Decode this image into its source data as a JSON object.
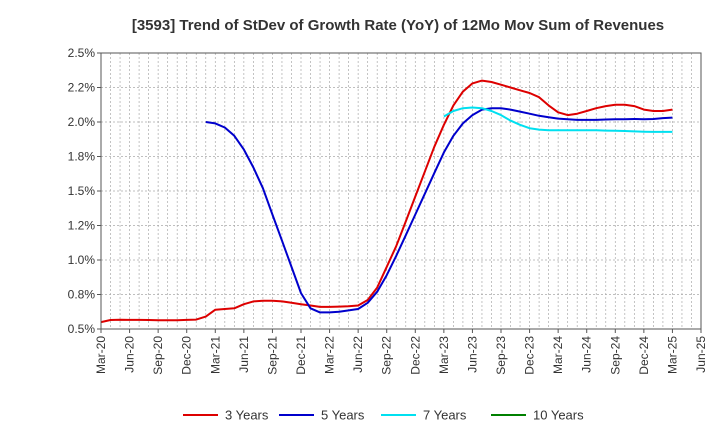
{
  "chart_data": {
    "type": "line",
    "title": "[3593]  Trend of StDev of Growth Rate (YoY) of 12Mo Mov Sum of Revenues",
    "xlabel": "",
    "ylabel": "",
    "x_ticks": [
      "Mar-20",
      "Jun-20",
      "Sep-20",
      "Dec-20",
      "Mar-21",
      "Jun-21",
      "Sep-21",
      "Dec-21",
      "Mar-22",
      "Jun-22",
      "Sep-22",
      "Dec-22",
      "Mar-23",
      "Jun-23",
      "Sep-23",
      "Dec-23",
      "Mar-24",
      "Jun-24",
      "Sep-24",
      "Dec-24",
      "Mar-25",
      "Jun-25"
    ],
    "y_ticks": [
      0.5,
      0.75,
      1.0,
      1.25,
      1.5,
      1.75,
      2.0,
      2.25,
      2.5
    ],
    "y_tick_labels": [
      "0.5%",
      "0.8%",
      "1.0%",
      "1.2%",
      "1.5%",
      "1.8%",
      "2.0%",
      "2.2%",
      "2.5%"
    ],
    "ylim": [
      0.5,
      2.5
    ],
    "x_range_months": [
      0,
      63
    ],
    "grid": true,
    "legend_position": "bottom",
    "series": [
      {
        "name": "3 Years",
        "color": "#dd0000",
        "points": [
          [
            0,
            0.55
          ],
          [
            1,
            0.565
          ],
          [
            2,
            0.567
          ],
          [
            3,
            0.566
          ],
          [
            4,
            0.566
          ],
          [
            5,
            0.565
          ],
          [
            6,
            0.564
          ],
          [
            7,
            0.563
          ],
          [
            8,
            0.564
          ],
          [
            9,
            0.566
          ],
          [
            10,
            0.568
          ],
          [
            11,
            0.59
          ],
          [
            12,
            0.64
          ],
          [
            13,
            0.645
          ],
          [
            14,
            0.65
          ],
          [
            15,
            0.68
          ],
          [
            16,
            0.7
          ],
          [
            17,
            0.705
          ],
          [
            18,
            0.705
          ],
          [
            19,
            0.7
          ],
          [
            20,
            0.69
          ],
          [
            21,
            0.68
          ],
          [
            22,
            0.67
          ],
          [
            23,
            0.66
          ],
          [
            24,
            0.66
          ],
          [
            25,
            0.662
          ],
          [
            26,
            0.665
          ],
          [
            27,
            0.67
          ],
          [
            28,
            0.71
          ],
          [
            29,
            0.8
          ],
          [
            30,
            0.95
          ],
          [
            31,
            1.1
          ],
          [
            32,
            1.28
          ],
          [
            33,
            1.46
          ],
          [
            34,
            1.64
          ],
          [
            35,
            1.82
          ],
          [
            36,
            1.98
          ],
          [
            37,
            2.12
          ],
          [
            38,
            2.22
          ],
          [
            39,
            2.28
          ],
          [
            40,
            2.3
          ],
          [
            41,
            2.29
          ],
          [
            42,
            2.27
          ],
          [
            43,
            2.25
          ],
          [
            44,
            2.23
          ],
          [
            45,
            2.21
          ],
          [
            46,
            2.18
          ],
          [
            47,
            2.12
          ],
          [
            48,
            2.07
          ],
          [
            49,
            2.05
          ],
          [
            50,
            2.06
          ],
          [
            51,
            2.08
          ],
          [
            52,
            2.1
          ],
          [
            53,
            2.115
          ],
          [
            54,
            2.125
          ],
          [
            55,
            2.125
          ],
          [
            56,
            2.115
          ],
          [
            57,
            2.09
          ],
          [
            58,
            2.08
          ],
          [
            59,
            2.08
          ],
          [
            60,
            2.09
          ]
        ]
      },
      {
        "name": "5 Years",
        "color": "#0000cc",
        "points": [
          [
            11,
            2.0
          ],
          [
            12,
            1.99
          ],
          [
            13,
            1.96
          ],
          [
            14,
            1.9
          ],
          [
            15,
            1.8
          ],
          [
            16,
            1.67
          ],
          [
            17,
            1.52
          ],
          [
            18,
            1.33
          ],
          [
            19,
            1.14
          ],
          [
            20,
            0.95
          ],
          [
            21,
            0.76
          ],
          [
            22,
            0.65
          ],
          [
            23,
            0.62
          ],
          [
            24,
            0.62
          ],
          [
            25,
            0.625
          ],
          [
            26,
            0.635
          ],
          [
            27,
            0.645
          ],
          [
            28,
            0.69
          ],
          [
            29,
            0.77
          ],
          [
            30,
            0.89
          ],
          [
            31,
            1.03
          ],
          [
            32,
            1.18
          ],
          [
            33,
            1.33
          ],
          [
            34,
            1.48
          ],
          [
            35,
            1.63
          ],
          [
            36,
            1.78
          ],
          [
            37,
            1.9
          ],
          [
            38,
            1.99
          ],
          [
            39,
            2.05
          ],
          [
            40,
            2.09
          ],
          [
            41,
            2.1
          ],
          [
            42,
            2.1
          ],
          [
            43,
            2.09
          ],
          [
            44,
            2.075
          ],
          [
            45,
            2.06
          ],
          [
            46,
            2.045
          ],
          [
            47,
            2.035
          ],
          [
            48,
            2.025
          ],
          [
            49,
            2.02
          ],
          [
            50,
            2.015
          ],
          [
            51,
            2.015
          ],
          [
            52,
            2.015
          ],
          [
            53,
            2.018
          ],
          [
            54,
            2.02
          ],
          [
            55,
            2.02
          ],
          [
            56,
            2.022
          ],
          [
            57,
            2.02
          ],
          [
            58,
            2.022
          ],
          [
            59,
            2.028
          ],
          [
            60,
            2.032
          ]
        ]
      },
      {
        "name": "7 Years",
        "color": "#00e0f0",
        "points": [
          [
            36,
            2.04
          ],
          [
            37,
            2.08
          ],
          [
            38,
            2.1
          ],
          [
            39,
            2.105
          ],
          [
            40,
            2.1
          ],
          [
            41,
            2.08
          ],
          [
            42,
            2.05
          ],
          [
            43,
            2.01
          ],
          [
            44,
            1.98
          ],
          [
            45,
            1.955
          ],
          [
            46,
            1.945
          ],
          [
            47,
            1.94
          ],
          [
            48,
            1.94
          ],
          [
            49,
            1.94
          ],
          [
            50,
            1.94
          ],
          [
            51,
            1.94
          ],
          [
            52,
            1.94
          ],
          [
            53,
            1.938
          ],
          [
            54,
            1.937
          ],
          [
            55,
            1.935
          ],
          [
            56,
            1.932
          ],
          [
            57,
            1.93
          ],
          [
            58,
            1.928
          ],
          [
            59,
            1.928
          ],
          [
            60,
            1.928
          ]
        ]
      },
      {
        "name": "10 Years",
        "color": "#008000",
        "points": []
      }
    ]
  }
}
